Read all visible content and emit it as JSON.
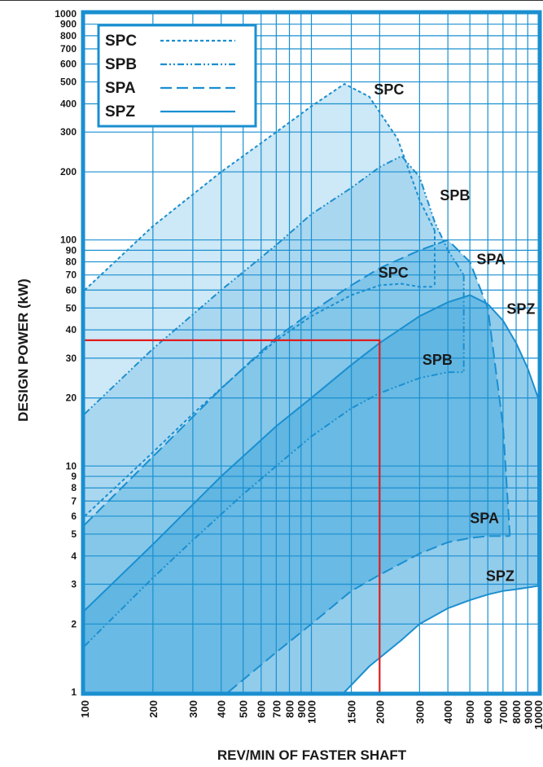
{
  "chart_data": {
    "type": "area",
    "title": "",
    "xlabel": "REV/MIN OF FASTER SHAFT",
    "ylabel": "DESIGN POWER (kW)",
    "x_scale": "log",
    "y_scale": "log",
    "xlim": [
      100,
      10000
    ],
    "ylim": [
      1,
      1000
    ],
    "x_ticks": [
      100,
      200,
      300,
      400,
      500,
      600,
      700,
      800,
      900,
      1000,
      1500,
      2000,
      3000,
      4000,
      5000,
      6000,
      7000,
      8000,
      9000,
      10000
    ],
    "y_ticks": [
      1,
      2,
      3,
      4,
      5,
      6,
      7,
      8,
      9,
      10,
      20,
      30,
      40,
      50,
      60,
      70,
      80,
      90,
      100,
      200,
      300,
      400,
      500,
      600,
      700,
      800,
      900,
      1000
    ],
    "grid": true,
    "legend": {
      "position": "top-left",
      "entries": [
        {
          "label": "SPC",
          "style": "dashed-short"
        },
        {
          "label": "SPB",
          "style": "dash-dot-dot"
        },
        {
          "label": "SPA",
          "style": "dashed-long"
        },
        {
          "label": "SPZ",
          "style": "solid"
        }
      ]
    },
    "series": [
      {
        "name": "SPC",
        "upper": {
          "x": [
            100,
            200,
            400,
            700,
            1000,
            1400,
            1800,
            2400,
            3000,
            3500
          ],
          "y": [
            60,
            115,
            200,
            300,
            390,
            490,
            430,
            280,
            150,
            110
          ]
        },
        "lower": {
          "x": [
            100,
            200,
            300,
            500,
            700,
            1000,
            1500,
            2000,
            2500,
            3000,
            3500
          ],
          "y": [
            6,
            11.5,
            17,
            27,
            36,
            46,
            57,
            63,
            64,
            62,
            62
          ]
        }
      },
      {
        "name": "SPB",
        "upper": {
          "x": [
            100,
            200,
            400,
            700,
            1000,
            1500,
            2000,
            2500,
            3000,
            3500,
            4000,
            4700
          ],
          "y": [
            17,
            33,
            60,
            95,
            130,
            170,
            210,
            235,
            190,
            120,
            90,
            70
          ]
        },
        "lower": {
          "x": [
            100,
            200,
            300,
            500,
            700,
            1000,
            1500,
            2000,
            3000,
            4000,
            4700
          ],
          "y": [
            1.6,
            3.2,
            4.7,
            7.5,
            10,
            13.5,
            18,
            21,
            24.5,
            26,
            26
          ]
        }
      },
      {
        "name": "SPA",
        "upper": {
          "x": [
            100,
            200,
            400,
            700,
            1000,
            1500,
            2000,
            3000,
            4000,
            5000,
            6000,
            7000,
            7500
          ],
          "y": [
            5.5,
            11,
            22,
            37,
            48,
            63,
            75,
            90,
            100,
            80,
            50,
            15,
            5
          ]
        },
        "lower": {
          "x": [
            430,
            700,
            1000,
            1500,
            2000,
            3000,
            4000,
            5000,
            6000,
            7000,
            7500
          ],
          "y": [
            1,
            1.5,
            2,
            2.8,
            3.3,
            4.1,
            4.6,
            4.8,
            4.9,
            4.9,
            4.9
          ]
        }
      },
      {
        "name": "SPZ",
        "upper": {
          "x": [
            100,
            200,
            400,
            700,
            1000,
            1500,
            2000,
            3000,
            4000,
            5000,
            6000,
            7000,
            8000,
            9000,
            10000
          ],
          "y": [
            2.3,
            4.5,
            9,
            15,
            20,
            28,
            35,
            46,
            53,
            57,
            52,
            44,
            35,
            27,
            20
          ]
        },
        "lower": {
          "x": [
            1400,
            1800,
            2500,
            3000,
            4000,
            5000,
            6000,
            7000,
            8000,
            9000,
            10000
          ],
          "y": [
            1,
            1.3,
            1.7,
            2,
            2.35,
            2.55,
            2.7,
            2.8,
            2.85,
            2.9,
            2.95
          ]
        }
      }
    ],
    "series_labels": [
      {
        "text": "SPC",
        "x": 2200,
        "y": 440
      },
      {
        "text": "SPB",
        "x": 4300,
        "y": 150
      },
      {
        "text": "SPC",
        "x": 2300,
        "y": 68
      },
      {
        "text": "SPA",
        "x": 6200,
        "y": 78
      },
      {
        "text": "SPZ",
        "x": 8400,
        "y": 47
      },
      {
        "text": "SPB",
        "x": 3600,
        "y": 28
      },
      {
        "text": "SPA",
        "x": 5800,
        "y": 5.6
      },
      {
        "text": "SPZ",
        "x": 6800,
        "y": 3.1
      }
    ],
    "reference_line": {
      "color": "#e01d1d",
      "points": [
        {
          "x": 100,
          "y": 36
        },
        {
          "x": 2000,
          "y": 36
        },
        {
          "x": 2000,
          "y": 1
        }
      ]
    },
    "colors": {
      "border": "#1a8fd0",
      "grid": "#1a8fd0",
      "fill_light": "#cde8f6",
      "fill_mid": "#9dd2ee",
      "fill_dark": "#6fbde6",
      "fill_darkest": "#49aadd",
      "line": "#1a8fd0"
    }
  }
}
